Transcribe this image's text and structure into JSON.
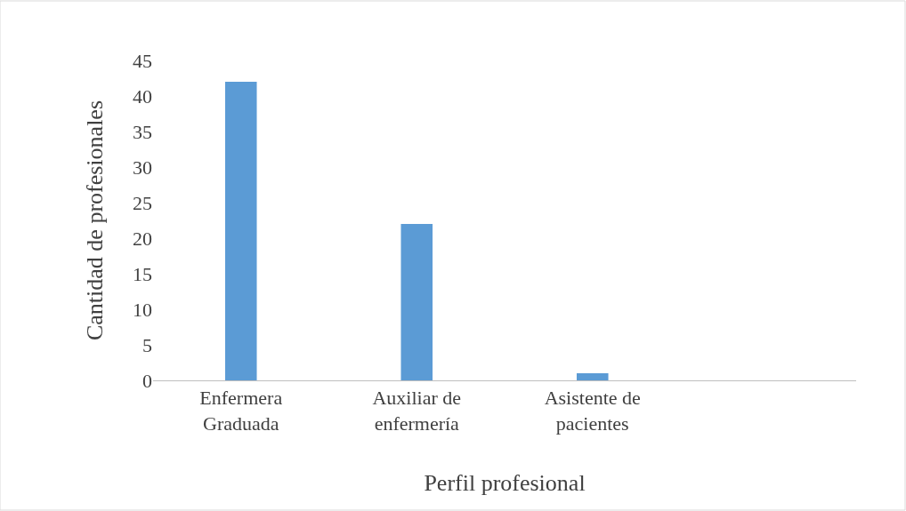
{
  "chart_data": {
    "type": "bar",
    "xlabel": "Perfil profesional",
    "ylabel": "Cantidad de profesionales",
    "categories": [
      "Enfermera Graduada",
      "Auxiliar de enfermería",
      "Asistente de pacientes",
      null
    ],
    "values": [
      42,
      22,
      1,
      null
    ],
    "color": "#5b9bd5",
    "ylim": [
      0,
      45
    ],
    "yticks": [
      0,
      5,
      10,
      15,
      20,
      25,
      30,
      35,
      40,
      45
    ]
  }
}
